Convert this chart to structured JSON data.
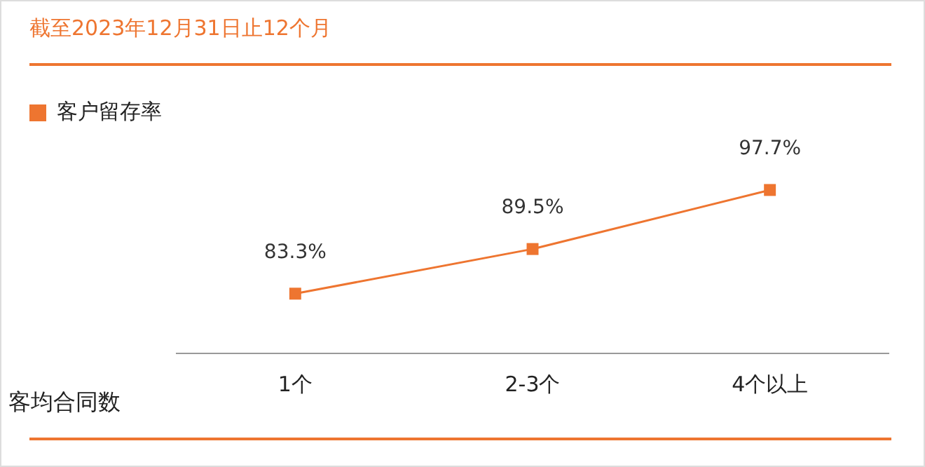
{
  "chart_data": {
    "type": "line",
    "title": "截至2023年12月31日止12个月",
    "xlabel": "客均合同数",
    "categories": [
      "1个",
      "2-3个",
      "4个以上"
    ],
    "series": [
      {
        "name": "客户留存率",
        "color": "#ee7530",
        "values": [
          83.3,
          89.5,
          97.7
        ],
        "value_labels": [
          "83.3%",
          "89.5%",
          "97.7%"
        ]
      }
    ],
    "legend": "top left",
    "marker": "square",
    "tick_labels": "x"
  }
}
